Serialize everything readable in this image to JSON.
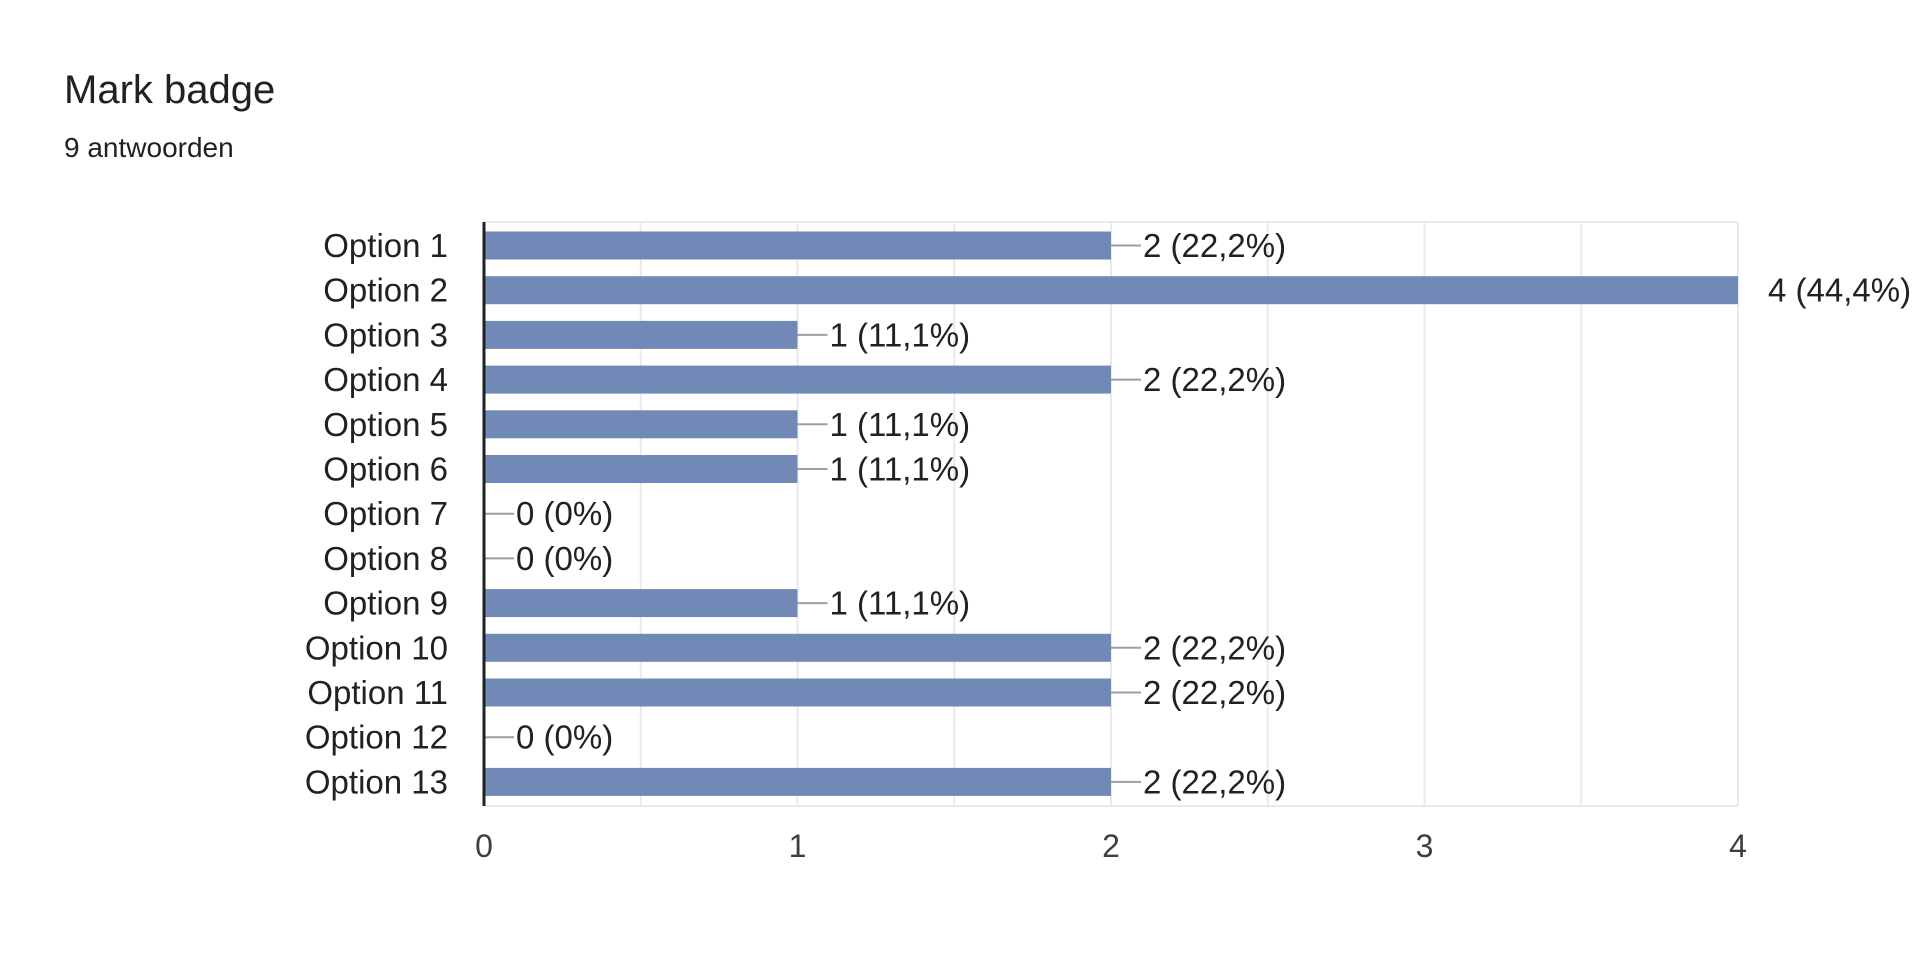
{
  "header": {
    "title": "Mark badge",
    "subtitle": "9 antwoorden"
  },
  "colors": {
    "bar": "#7189b7",
    "grid": "#e8eaed",
    "axis": "#202124",
    "leader": "#9aa0a6"
  },
  "chart_data": {
    "type": "bar",
    "orientation": "horizontal",
    "title": "Mark badge",
    "categories": [
      "Option 1",
      "Option 2",
      "Option 3",
      "Option 4",
      "Option 5",
      "Option 6",
      "Option 7",
      "Option 8",
      "Option 9",
      "Option 10",
      "Option 11",
      "Option 12",
      "Option 13"
    ],
    "values": [
      2,
      4,
      1,
      2,
      1,
      1,
      0,
      0,
      1,
      2,
      2,
      0,
      2
    ],
    "data_labels": [
      "2 (22,2%)",
      "4 (44,4%)",
      "1 (11,1%)",
      "2 (22,2%)",
      "1 (11,1%)",
      "1 (11,1%)",
      "0 (0%)",
      "0 (0%)",
      "1 (11,1%)",
      "2 (22,2%)",
      "2 (22,2%)",
      "0 (0%)",
      "2 (22,2%)"
    ],
    "xlim": [
      0,
      4
    ],
    "xticks": [
      0,
      1,
      2,
      3,
      4
    ],
    "xtick_labels": [
      "0",
      "1",
      "2",
      "3",
      "4"
    ],
    "grid": true,
    "legend": "none"
  }
}
